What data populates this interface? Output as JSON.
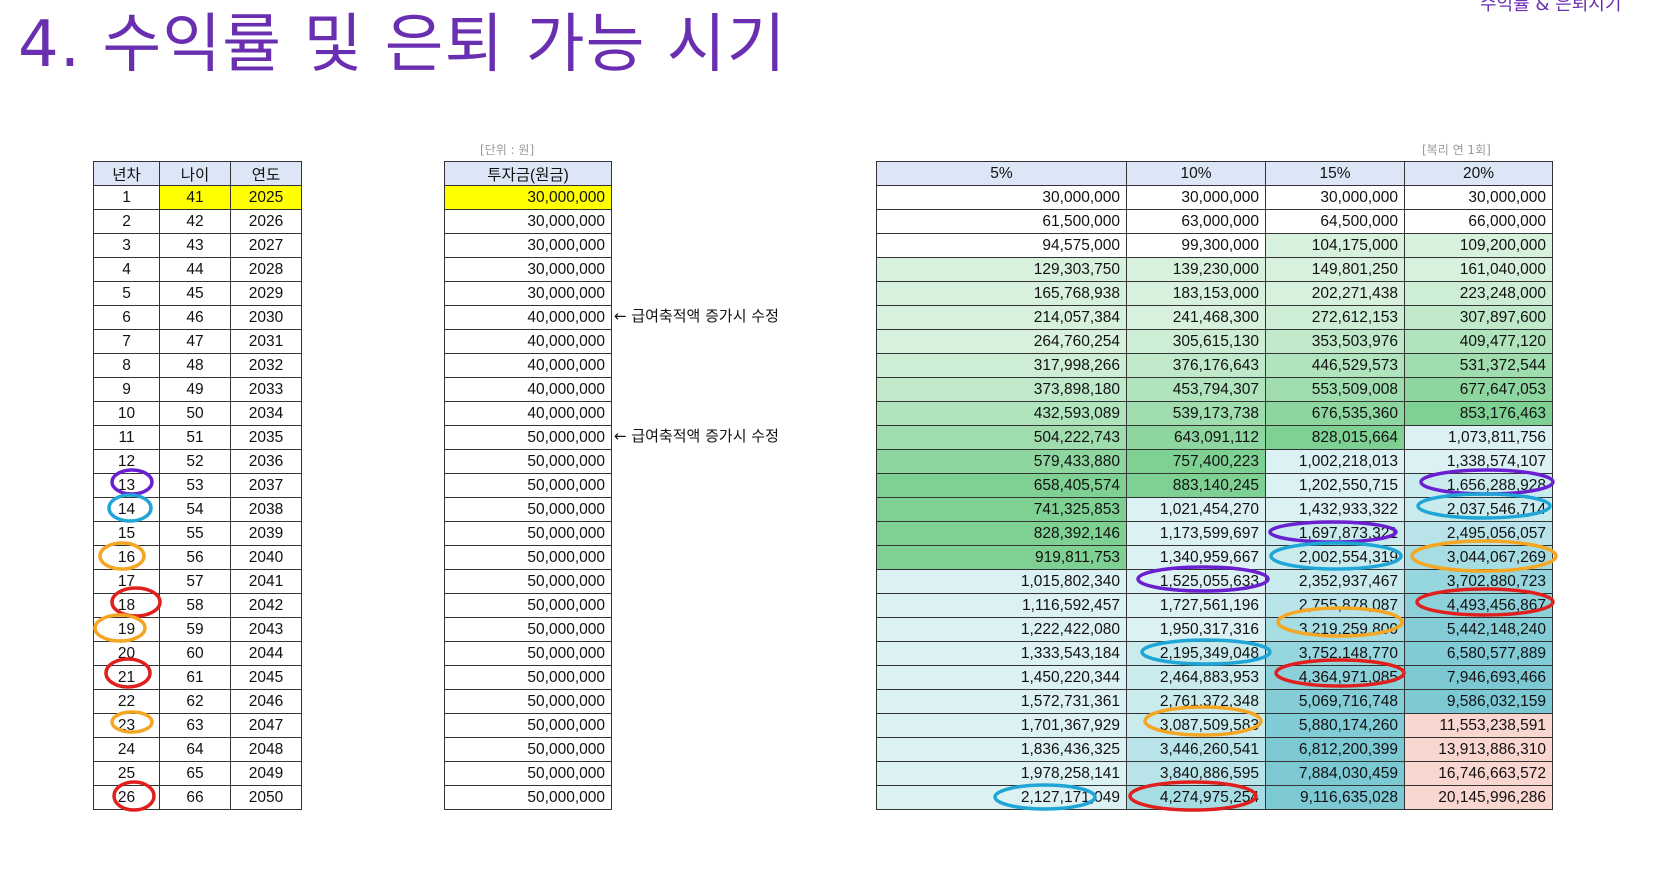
{
  "page": {
    "title": "4. 수익률 및 은퇴 가능 시기",
    "corner_label": "수익률 & 은퇴시기",
    "unit_label": "[단위 : 원]",
    "unit_label_right": "[복리 연 1회]"
  },
  "left_table": {
    "headers": [
      "년차",
      "나이",
      "연도"
    ],
    "rows": [
      [
        "1",
        "41",
        "2025"
      ],
      [
        "2",
        "42",
        "2026"
      ],
      [
        "3",
        "43",
        "2027"
      ],
      [
        "4",
        "44",
        "2028"
      ],
      [
        "5",
        "45",
        "2029"
      ],
      [
        "6",
        "46",
        "2030"
      ],
      [
        "7",
        "47",
        "2031"
      ],
      [
        "8",
        "48",
        "2032"
      ],
      [
        "9",
        "49",
        "2033"
      ],
      [
        "10",
        "50",
        "2034"
      ],
      [
        "11",
        "51",
        "2035"
      ],
      [
        "12",
        "52",
        "2036"
      ],
      [
        "13",
        "53",
        "2037"
      ],
      [
        "14",
        "54",
        "2038"
      ],
      [
        "15",
        "55",
        "2039"
      ],
      [
        "16",
        "56",
        "2040"
      ],
      [
        "17",
        "57",
        "2041"
      ],
      [
        "18",
        "58",
        "2042"
      ],
      [
        "19",
        "59",
        "2043"
      ],
      [
        "20",
        "60",
        "2044"
      ],
      [
        "21",
        "61",
        "2045"
      ],
      [
        "22",
        "62",
        "2046"
      ],
      [
        "23",
        "63",
        "2047"
      ],
      [
        "24",
        "64",
        "2048"
      ],
      [
        "25",
        "65",
        "2049"
      ],
      [
        "26",
        "66",
        "2050"
      ]
    ]
  },
  "invest_table": {
    "header": "투자금(원금)",
    "values": [
      "30,000,000",
      "30,000,000",
      "30,000,000",
      "30,000,000",
      "30,000,000",
      "40,000,000",
      "40,000,000",
      "40,000,000",
      "40,000,000",
      "40,000,000",
      "50,000,000",
      "50,000,000",
      "50,000,000",
      "50,000,000",
      "50,000,000",
      "50,000,000",
      "50,000,000",
      "50,000,000",
      "50,000,000",
      "50,000,000",
      "50,000,000",
      "50,000,000",
      "50,000,000",
      "50,000,000",
      "50,000,000",
      "50,000,000"
    ]
  },
  "notes": [
    {
      "row": 6,
      "text": "← 급여축적액 증가시 수정"
    },
    {
      "row": 11,
      "text": "← 급여축적액 증가시 수정"
    }
  ],
  "returns_table": {
    "headers": [
      "5%",
      "10%",
      "15%",
      "20%"
    ],
    "rows": [
      [
        "30,000,000",
        "30,000,000",
        "30,000,000",
        "30,000,000"
      ],
      [
        "61,500,000",
        "63,000,000",
        "64,500,000",
        "66,000,000"
      ],
      [
        "94,575,000",
        "99,300,000",
        "104,175,000",
        "109,200,000"
      ],
      [
        "129,303,750",
        "139,230,000",
        "149,801,250",
        "161,040,000"
      ],
      [
        "165,768,938",
        "183,153,000",
        "202,271,438",
        "223,248,000"
      ],
      [
        "214,057,384",
        "241,468,300",
        "272,612,153",
        "307,897,600"
      ],
      [
        "264,760,254",
        "305,615,130",
        "353,503,976",
        "409,477,120"
      ],
      [
        "317,998,266",
        "376,176,643",
        "446,529,573",
        "531,372,544"
      ],
      [
        "373,898,180",
        "453,794,307",
        "553,509,008",
        "677,647,053"
      ],
      [
        "432,593,089",
        "539,173,738",
        "676,535,360",
        "853,176,463"
      ],
      [
        "504,222,743",
        "643,091,112",
        "828,015,664",
        "1,073,811,756"
      ],
      [
        "579,433,880",
        "757,400,223",
        "1,002,218,013",
        "1,338,574,107"
      ],
      [
        "658,405,574",
        "883,140,245",
        "1,202,550,715",
        "1,656,288,928"
      ],
      [
        "741,325,853",
        "1,021,454,270",
        "1,432,933,322",
        "2,037,546,714"
      ],
      [
        "828,392,146",
        "1,173,599,697",
        "1,697,873,321",
        "2,495,056,057"
      ],
      [
        "919,811,753",
        "1,340,959,667",
        "2,002,554,319",
        "3,044,067,269"
      ],
      [
        "1,015,802,340",
        "1,525,055,633",
        "2,352,937,467",
        "3,702,880,723"
      ],
      [
        "1,116,592,457",
        "1,727,561,196",
        "2,755,878,087",
        "4,493,456,867"
      ],
      [
        "1,222,422,080",
        "1,950,317,316",
        "3,219,259,800",
        "5,442,148,240"
      ],
      [
        "1,333,543,184",
        "2,195,349,048",
        "3,752,148,770",
        "6,580,577,889"
      ],
      [
        "1,450,220,344",
        "2,464,883,953",
        "4,364,971,085",
        "7,946,693,466"
      ],
      [
        "1,572,731,361",
        "2,761,372,348",
        "5,069,716,748",
        "9,586,032,159"
      ],
      [
        "1,701,367,929",
        "3,087,509,583",
        "5,880,174,260",
        "11,553,238,591"
      ],
      [
        "1,836,436,325",
        "3,446,260,541",
        "6,812,200,399",
        "13,913,886,310"
      ],
      [
        "1,978,258,141",
        "3,840,886,595",
        "7,884,030,459",
        "16,746,663,572"
      ],
      [
        "2,127,171,049",
        "4,274,975,254",
        "9,116,635,028",
        "20,145,996,286"
      ]
    ],
    "cell_colors": [
      [
        "#ffffff",
        "#ffffff",
        "#ffffff",
        "#ffffff"
      ],
      [
        "#ffffff",
        "#ffffff",
        "#ffffff",
        "#ffffff"
      ],
      [
        "#ffffff",
        "#ffffff",
        "#d7f1dd",
        "#d7f1dd"
      ],
      [
        "#d7f1dd",
        "#d7f1dd",
        "#d7f1dd",
        "#d7f1dd"
      ],
      [
        "#d7f1dd",
        "#d7f1dd",
        "#d7f1dd",
        "#cdeed5"
      ],
      [
        "#d7f1dd",
        "#d7f1dd",
        "#cdeed5",
        "#bfe9c9"
      ],
      [
        "#d7f1dd",
        "#cdeed5",
        "#bfe9c9",
        "#b0e4bd"
      ],
      [
        "#cdeed5",
        "#bfe9c9",
        "#b0e4bd",
        "#9fdcae"
      ],
      [
        "#bfe9c9",
        "#b0e4bd",
        "#9fdcae",
        "#8ed6a0"
      ],
      [
        "#b0e4bd",
        "#9fdcae",
        "#8ed6a0",
        "#7fd093"
      ],
      [
        "#9fdcae",
        "#8ed6a0",
        "#7fd093",
        "#dcf1f3"
      ],
      [
        "#8ed6a0",
        "#7fd093",
        "#dcf1f3",
        "#dcf1f3"
      ],
      [
        "#7fd093",
        "#7fd093",
        "#dcf1f3",
        "#c9ebee"
      ],
      [
        "#7fd093",
        "#dcf1f3",
        "#dcf1f3",
        "#c9ebee"
      ],
      [
        "#7fd093",
        "#dcf1f3",
        "#c9ebee",
        "#b8e4e9"
      ],
      [
        "#7fd093",
        "#dcf1f3",
        "#c9ebee",
        "#a6dde3"
      ],
      [
        "#dcf1f3",
        "#dcf1f3",
        "#c9ebee",
        "#96d6de"
      ],
      [
        "#dcf1f3",
        "#dcf1f3",
        "#b8e4e9",
        "#8cd1da"
      ],
      [
        "#dcf1f3",
        "#dcf1f3",
        "#a6dde3",
        "#84cdd7"
      ],
      [
        "#dcf1f3",
        "#c9ebee",
        "#96d6de",
        "#80cbd6"
      ],
      [
        "#dcf1f3",
        "#c9ebee",
        "#8cd1da",
        "#7cc9d4"
      ],
      [
        "#dcf1f3",
        "#c9ebee",
        "#84cdd7",
        "#7cc9d4"
      ],
      [
        "#dcf1f3",
        "#c9ebee",
        "#80cbd6",
        "#f9d6d0"
      ],
      [
        "#dcf1f3",
        "#b8e4e9",
        "#7cc9d4",
        "#f9d6d0"
      ],
      [
        "#dcf1f3",
        "#b8e4e9",
        "#7cc9d4",
        "#f9d6d0"
      ],
      [
        "#dcf1f3",
        "#a6dde3",
        "#7cc9d4",
        "#f9d6d0"
      ]
    ]
  },
  "colors": {
    "title": "#6a2fb0",
    "header_bg": "#dce6f7",
    "highlight": "#ffff00",
    "mark_purple": "#6a1fd0",
    "mark_blue": "#1fa6d6",
    "mark_orange": "#f5a623",
    "mark_red": "#e0201e"
  }
}
